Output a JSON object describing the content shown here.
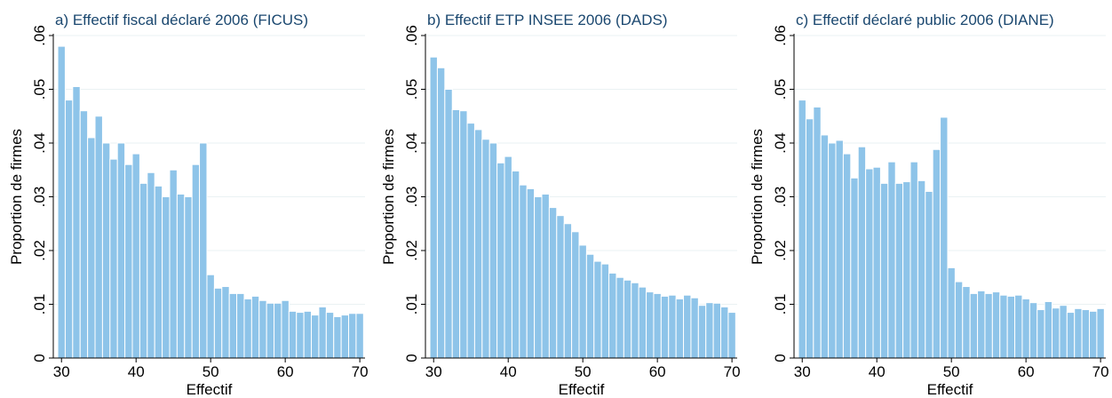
{
  "chart_data": [
    {
      "type": "histogram",
      "title": "a) Effectif fiscal déclaré 2006 (FICUS)",
      "xlabel": "Effectif",
      "ylabel": "Proportion de firmes",
      "color": "#8ec4e9",
      "bins": [
        29.5,
        30.5,
        31.5,
        32.5,
        33.5,
        34.5,
        35.5,
        36.5,
        37.5,
        38.5,
        39.5,
        40.5,
        41.5,
        42.5,
        43.5,
        44.5,
        45.5,
        46.5,
        47.5,
        48.5,
        49.5,
        50.5,
        51.5,
        52.5,
        53.5,
        54.5,
        55.5,
        56.5,
        57.5,
        58.5,
        59.5,
        60.5,
        61.5,
        62.5,
        63.5,
        64.5,
        65.5,
        66.5,
        67.5,
        68.5,
        69.5,
        70.5
      ],
      "values": [
        0.058,
        0.048,
        0.0505,
        0.046,
        0.041,
        0.045,
        0.04,
        0.037,
        0.04,
        0.036,
        0.038,
        0.0325,
        0.0345,
        0.032,
        0.03,
        0.035,
        0.0305,
        0.03,
        0.036,
        0.04,
        0.0155,
        0.013,
        0.0133,
        0.012,
        0.012,
        0.011,
        0.0115,
        0.0107,
        0.0102,
        0.0102,
        0.0107,
        0.0087,
        0.0085,
        0.0087,
        0.008,
        0.0095,
        0.0085,
        0.0077,
        0.008,
        0.0083,
        0.0083
      ],
      "xlim": [
        28.9,
        70.7
      ],
      "ylim": [
        0,
        0.06
      ],
      "xticks": [
        30,
        40,
        50,
        60,
        70
      ],
      "yticks": [
        0,
        {
          "value": 0.01,
          "label": ".01"
        },
        {
          "value": 0.02,
          "label": ".02"
        },
        {
          "value": 0.03,
          "label": ".03"
        },
        {
          "value": 0.04,
          "label": ".04"
        },
        {
          "value": 0.05,
          "label": ".05"
        },
        {
          "value": 0.06,
          "label": ".06"
        }
      ],
      "grid": true
    },
    {
      "type": "histogram",
      "title": "b) Effectif ETP INSEE 2006 (DADS)",
      "xlabel": "Effectif",
      "ylabel": "Proportion de firmes",
      "color": "#8ec4e9",
      "bins": [
        29.5,
        30.5,
        31.5,
        32.5,
        33.5,
        34.5,
        35.5,
        36.5,
        37.5,
        38.5,
        39.5,
        40.5,
        41.5,
        42.5,
        43.5,
        44.5,
        45.5,
        46.5,
        47.5,
        48.5,
        49.5,
        50.5,
        51.5,
        52.5,
        53.5,
        54.5,
        55.5,
        56.5,
        57.5,
        58.5,
        59.5,
        60.5,
        61.5,
        62.5,
        63.5,
        64.5,
        65.5,
        66.5,
        67.5,
        68.5,
        69.5,
        70.5
      ],
      "values": [
        0.056,
        0.054,
        0.05,
        0.0462,
        0.046,
        0.0437,
        0.0425,
        0.0407,
        0.04,
        0.0363,
        0.0375,
        0.0348,
        0.0322,
        0.0315,
        0.03,
        0.0305,
        0.028,
        0.0265,
        0.025,
        0.0235,
        0.021,
        0.0193,
        0.018,
        0.0175,
        0.0158,
        0.015,
        0.0145,
        0.014,
        0.0132,
        0.0123,
        0.012,
        0.0115,
        0.0117,
        0.011,
        0.0117,
        0.0112,
        0.0098,
        0.0103,
        0.0102,
        0.0095,
        0.0085
      ],
      "xlim": [
        28.9,
        70.7
      ],
      "ylim": [
        0,
        0.06
      ],
      "xticks": [
        30,
        40,
        50,
        60,
        70
      ],
      "yticks": [
        0,
        {
          "value": 0.01,
          "label": ".01"
        },
        {
          "value": 0.02,
          "label": ".02"
        },
        {
          "value": 0.03,
          "label": ".03"
        },
        {
          "value": 0.04,
          "label": ".04"
        },
        {
          "value": 0.05,
          "label": ".05"
        },
        {
          "value": 0.06,
          "label": ".06"
        }
      ],
      "grid": true
    },
    {
      "type": "histogram",
      "title": "c) Effectif déclaré public 2006 (DIANE)",
      "xlabel": "Effectif",
      "ylabel": "Proportion de firmes",
      "color": "#8ec4e9",
      "bins": [
        29.5,
        30.5,
        31.5,
        32.5,
        33.5,
        34.5,
        35.5,
        36.5,
        37.5,
        38.5,
        39.5,
        40.5,
        41.5,
        42.5,
        43.5,
        44.5,
        45.5,
        46.5,
        47.5,
        48.5,
        49.5,
        50.5,
        51.5,
        52.5,
        53.5,
        54.5,
        55.5,
        56.5,
        57.5,
        58.5,
        59.5,
        60.5,
        61.5,
        62.5,
        63.5,
        64.5,
        65.5,
        66.5,
        67.5,
        68.5,
        69.5,
        70.5
      ],
      "values": [
        0.048,
        0.0445,
        0.0467,
        0.0415,
        0.04,
        0.0405,
        0.038,
        0.0335,
        0.0393,
        0.0352,
        0.0355,
        0.0325,
        0.0365,
        0.0325,
        0.0328,
        0.0365,
        0.033,
        0.031,
        0.0388,
        0.0448,
        0.0168,
        0.0142,
        0.0133,
        0.012,
        0.0125,
        0.012,
        0.0123,
        0.0117,
        0.0115,
        0.0117,
        0.011,
        0.0103,
        0.009,
        0.0105,
        0.0093,
        0.0098,
        0.0085,
        0.0092,
        0.009,
        0.0087,
        0.0092
      ],
      "xlim": [
        28.9,
        70.7
      ],
      "ylim": [
        0,
        0.06
      ],
      "xticks": [
        30,
        40,
        50,
        60,
        70
      ],
      "yticks": [
        0,
        {
          "value": 0.01,
          "label": ".01"
        },
        {
          "value": 0.02,
          "label": ".02"
        },
        {
          "value": 0.03,
          "label": ".03"
        },
        {
          "value": 0.04,
          "label": ".04"
        },
        {
          "value": 0.05,
          "label": ".05"
        },
        {
          "value": 0.06,
          "label": ".06"
        }
      ],
      "grid": true
    }
  ]
}
